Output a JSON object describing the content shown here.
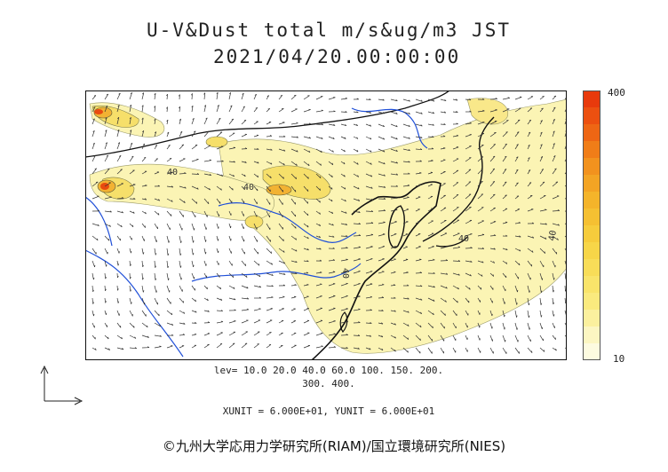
{
  "header": {
    "title": "U-V&Dust total m/s&ug/m3 JST",
    "timestamp": "2021/04/20.00:00:00"
  },
  "colorbar": {
    "max_label": "400",
    "min_label": "10",
    "colors": [
      "#fdfbe0",
      "#fcf6c2",
      "#fbf09e",
      "#faea7e",
      "#f9e46a",
      "#f8dd58",
      "#f7d648",
      "#f6cc3c",
      "#f5c032",
      "#f4b42a",
      "#f3a424",
      "#f2921e",
      "#f07d18",
      "#ee6614",
      "#ec5010",
      "#e83a0c"
    ]
  },
  "legend": {
    "levels_line1": "lev= 10.0 20.0 40.0 60.0 100. 150. 200.",
    "levels_line2": "300. 400.",
    "units": "XUNIT = 6.000E+01, YUNIT = 6.000E+01"
  },
  "contour_labels": [
    "40",
    "40",
    "40",
    "40",
    "40"
  ],
  "credit": "©九州大学応用力学研究所(RIAM)/国立環境研究所(NIES)",
  "colors": {
    "dust_light": "#fbf4b4",
    "dust_mid": "#f6df6a",
    "dust_high": "#f2b233",
    "dust_peak": "#e84a10",
    "river": "#1f4fd8",
    "coast": "#111111"
  }
}
